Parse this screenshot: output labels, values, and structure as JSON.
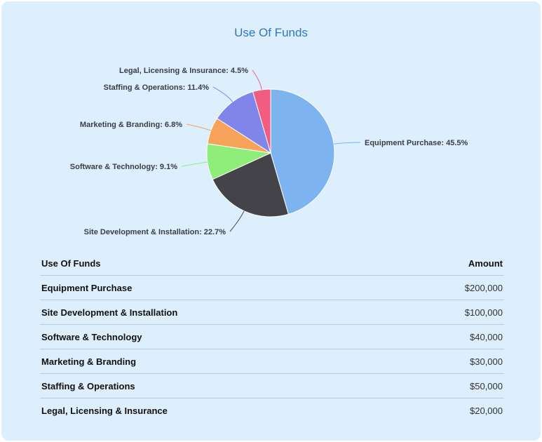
{
  "chart_data": {
    "type": "pie",
    "title": "Use Of Funds",
    "slices": [
      {
        "label": "Equipment Purchase",
        "value": 45.5,
        "display": "Equipment Purchase: 45.5%",
        "color": "#7db4ef"
      },
      {
        "label": "Site Development & Installation",
        "value": 22.7,
        "display": "Site Development & Installation: 22.7%",
        "color": "#434349"
      },
      {
        "label": "Software & Technology",
        "value": 9.1,
        "display": "Software & Technology: 9.1%",
        "color": "#8fee7a"
      },
      {
        "label": "Marketing & Branding",
        "value": 6.8,
        "display": "Marketing & Branding: 6.8%",
        "color": "#f7a35c"
      },
      {
        "label": "Staffing & Operations",
        "value": 11.4,
        "display": "Staffing & Operations: 11.4%",
        "color": "#8085e9"
      },
      {
        "label": "Legal, Licensing & Insurance",
        "value": 4.5,
        "display": "Legal, Licensing & Insurance: 4.5%",
        "color": "#f15c80"
      }
    ]
  },
  "table": {
    "headers": {
      "name": "Use Of Funds",
      "amount": "Amount"
    },
    "rows": [
      {
        "name": "Equipment Purchase",
        "amount": "$200,000"
      },
      {
        "name": "Site Development & Installation",
        "amount": "$100,000"
      },
      {
        "name": "Software & Technology",
        "amount": "$40,000"
      },
      {
        "name": "Marketing & Branding",
        "amount": "$30,000"
      },
      {
        "name": "Staffing & Operations",
        "amount": "$50,000"
      },
      {
        "name": "Legal, Licensing & Insurance",
        "amount": "$20,000"
      }
    ]
  },
  "colors": {
    "background": "#ddeefc",
    "title": "#2e78c2",
    "divider": "#b9cbdb"
  }
}
